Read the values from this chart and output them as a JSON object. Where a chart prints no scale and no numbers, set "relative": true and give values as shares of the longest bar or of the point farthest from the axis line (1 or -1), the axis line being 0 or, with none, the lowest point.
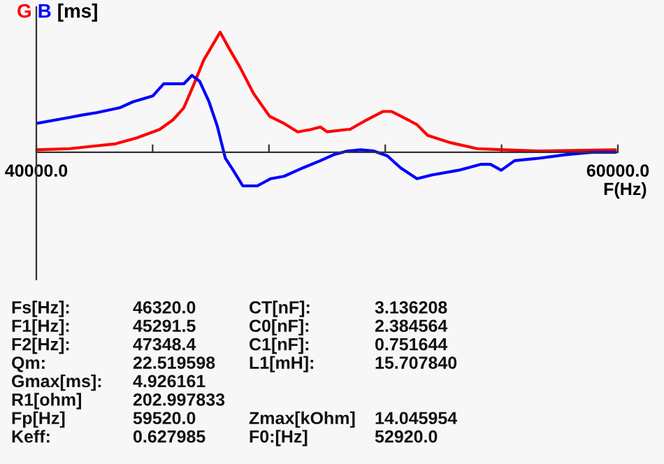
{
  "chart_data": {
    "type": "line",
    "relative": true,
    "ylabel": "[ms]",
    "xlabel": "F(Hz)",
    "xlim": [
      40000,
      60000
    ],
    "xticks": [
      {
        "value": 40000,
        "label": "40000.0"
      },
      {
        "value": 44000,
        "label": null
      },
      {
        "value": 48000,
        "label": null
      },
      {
        "value": 52000,
        "label": null
      },
      {
        "value": 56000,
        "label": null
      },
      {
        "value": 60000,
        "label": "60000.0"
      }
    ],
    "grid": false,
    "marker": "none",
    "line_style": "solid",
    "series": [
      {
        "name": "G",
        "color": "#ff0000",
        "x": [
          40000,
          41150,
          41940,
          42720,
          43460,
          44240,
          44700,
          45070,
          45390,
          45760,
          46320,
          46640,
          47000,
          47470,
          48020,
          48520,
          48990,
          49450,
          49770,
          50000,
          50690,
          50780,
          51290,
          51930,
          52210,
          52860,
          53090,
          53460,
          54240,
          55160,
          56080,
          57280,
          59910
        ],
        "values": [
          0.02,
          0.03,
          0.05,
          0.07,
          0.12,
          0.19,
          0.27,
          0.37,
          0.55,
          0.77,
          1.0,
          0.86,
          0.71,
          0.49,
          0.3,
          0.24,
          0.17,
          0.19,
          0.21,
          0.17,
          0.19,
          0.19,
          0.26,
          0.34,
          0.34,
          0.26,
          0.23,
          0.14,
          0.08,
          0.03,
          0.02,
          0.01,
          0.02
        ]
      },
      {
        "name": "B",
        "color": "#0000ff",
        "x": [
          40000,
          41150,
          41570,
          42070,
          42860,
          43320,
          44010,
          44380,
          45070,
          45350,
          45620,
          45940,
          46220,
          46500,
          46770,
          47100,
          47600,
          48060,
          48520,
          49170,
          49770,
          50230,
          50690,
          51150,
          51610,
          52070,
          52530,
          53090,
          53590,
          54520,
          55300,
          55620,
          55990,
          56450,
          57280,
          58200,
          59120,
          59910
        ],
        "values": [
          0.24,
          0.29,
          0.31,
          0.33,
          0.37,
          0.42,
          0.47,
          0.57,
          0.57,
          0.64,
          0.59,
          0.42,
          0.22,
          -0.05,
          -0.15,
          -0.28,
          -0.28,
          -0.22,
          -0.2,
          -0.13,
          -0.07,
          -0.02,
          0.01,
          0.02,
          0.01,
          -0.03,
          -0.13,
          -0.22,
          -0.19,
          -0.15,
          -0.1,
          -0.1,
          -0.15,
          -0.07,
          -0.05,
          -0.02,
          0.0,
          0.0
        ]
      }
    ],
    "annotations": [
      "Fs[Hz]:",
      "46320.0",
      "F1[Hz]:",
      "45291.5",
      "F2[Hz]:",
      "47348.4",
      "Qm:",
      "22.519598",
      "Gmax[ms]:",
      "4.926161",
      "R1[ohm]",
      "202.997833",
      "Fp[Hz]",
      "59520.0",
      "Keff:",
      "0.627985",
      "CT[nF]:",
      "3.136208",
      "C0[nF]:",
      "2.384564",
      "C1[nF]:",
      "0.751644",
      "L1[mH]:",
      "15.707840",
      "Zmax[kOhm]",
      "14.045954",
      "F0:[Hz]",
      "52920.0"
    ]
  }
}
